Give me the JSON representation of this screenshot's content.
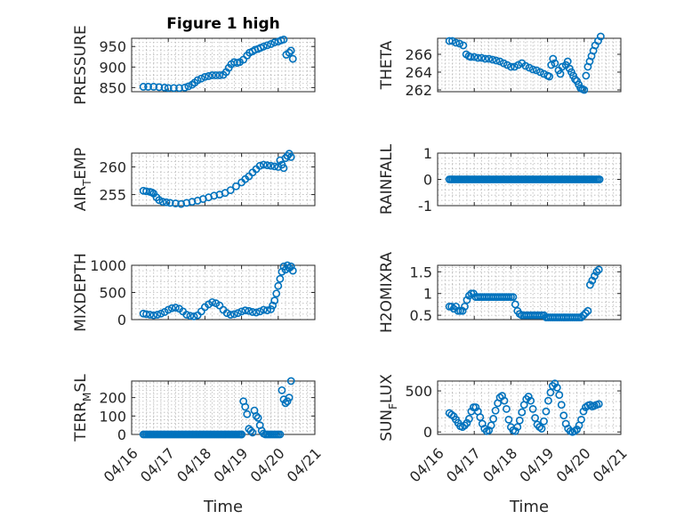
{
  "figure": {
    "title": "Figure 1 high",
    "xlabel": "Time",
    "x_ticks": [
      "04/16",
      "04/17",
      "04/18",
      "04/19",
      "04/20",
      "04/21"
    ],
    "marker_color": "#0072BD"
  },
  "chart_data": [
    {
      "type": "scatter",
      "name": "pressure",
      "title": "Figure 1 high",
      "ylabel_parts": [
        "PRESSURE"
      ],
      "xlabel": "",
      "ylim": [
        840,
        970
      ],
      "yticks": [
        850,
        900,
        950
      ],
      "xlim": [
        0,
        5
      ],
      "grid": true,
      "x": [
        0.32,
        0.45,
        0.6,
        0.75,
        0.9,
        1.0,
        1.15,
        1.3,
        1.45,
        1.55,
        1.65,
        1.72,
        1.8,
        1.9,
        2.0,
        2.1,
        2.2,
        2.3,
        2.4,
        2.5,
        2.58,
        2.65,
        2.72,
        2.8,
        2.88,
        2.95,
        3.05,
        3.15,
        3.22,
        3.3,
        3.37,
        3.45,
        3.52,
        3.6,
        3.7,
        3.8,
        3.9,
        4.0,
        4.08,
        4.15,
        4.22,
        4.3,
        4.35,
        4.4
      ],
      "y": [
        852,
        852,
        852,
        851,
        850,
        849,
        849,
        849,
        850,
        853,
        857,
        862,
        868,
        872,
        876,
        878,
        880,
        880,
        880,
        881,
        888,
        898,
        907,
        912,
        910,
        912,
        918,
        928,
        935,
        938,
        942,
        944,
        947,
        950,
        953,
        956,
        960,
        962,
        965,
        967,
        930,
        935,
        940,
        920
      ]
    },
    {
      "type": "scatter",
      "name": "theta",
      "ylabel_parts": [
        "THETA"
      ],
      "xlabel": "",
      "ylim": [
        261.8,
        267.8
      ],
      "yticks": [
        262,
        264,
        266
      ],
      "xlim": [
        0,
        5
      ],
      "grid": true,
      "x": [
        0.32,
        0.4,
        0.5,
        0.6,
        0.7,
        0.78,
        0.85,
        0.9,
        1.0,
        1.1,
        1.2,
        1.3,
        1.4,
        1.5,
        1.6,
        1.7,
        1.8,
        1.9,
        2.0,
        2.1,
        2.2,
        2.3,
        2.4,
        2.5,
        2.6,
        2.7,
        2.8,
        2.9,
        3.0,
        3.05,
        3.1,
        3.15,
        3.2,
        3.3,
        3.35,
        3.4,
        3.5,
        3.55,
        3.6,
        3.65,
        3.7,
        3.75,
        3.8,
        3.85,
        3.9,
        3.95,
        4.0,
        4.05,
        4.1,
        4.15,
        4.2,
        4.25,
        4.3,
        4.38,
        4.45
      ],
      "y": [
        267.5,
        267.5,
        267.3,
        267.2,
        267.0,
        266.0,
        265.8,
        265.7,
        265.7,
        265.6,
        265.6,
        265.5,
        265.5,
        265.4,
        265.3,
        265.2,
        265.0,
        264.8,
        264.6,
        264.6,
        264.8,
        265.0,
        264.7,
        264.5,
        264.3,
        264.2,
        264.0,
        263.8,
        263.6,
        263.5,
        264.8,
        265.5,
        265.0,
        264.2,
        263.8,
        264.6,
        264.8,
        265.2,
        264.4,
        264.0,
        263.6,
        263.2,
        263.0,
        262.6,
        262.2,
        262.1,
        262.0,
        263.6,
        264.6,
        265.2,
        265.8,
        266.4,
        267.0,
        267.5,
        268.0
      ]
    },
    {
      "type": "scatter",
      "name": "air_temp",
      "ylabel_parts": [
        "AIR",
        "T",
        "EMP"
      ],
      "xlabel": "",
      "ylim": [
        253,
        262.5
      ],
      "yticks": [
        255,
        260
      ],
      "xlim": [
        0,
        5
      ],
      "grid": true,
      "x": [
        0.32,
        0.4,
        0.5,
        0.55,
        0.6,
        0.68,
        0.75,
        0.85,
        0.95,
        1.05,
        1.2,
        1.35,
        1.5,
        1.65,
        1.8,
        1.95,
        2.1,
        2.25,
        2.4,
        2.55,
        2.7,
        2.85,
        3.0,
        3.1,
        3.2,
        3.3,
        3.4,
        3.5,
        3.6,
        3.7,
        3.8,
        3.9,
        4.0,
        4.05,
        4.1,
        4.15,
        4.2,
        4.25,
        4.3,
        4.35
      ],
      "y": [
        255.7,
        255.6,
        255.5,
        255.4,
        255.2,
        254.5,
        254.0,
        253.7,
        253.6,
        253.5,
        253.4,
        253.3,
        253.5,
        253.7,
        253.9,
        254.2,
        254.5,
        254.8,
        255.0,
        255.3,
        255.8,
        256.5,
        257.2,
        257.8,
        258.3,
        259.0,
        259.6,
        260.2,
        260.4,
        260.3,
        260.2,
        260.1,
        260.0,
        261.2,
        260.4,
        259.8,
        261.6,
        262.0,
        262.4,
        261.8
      ]
    },
    {
      "type": "scatter",
      "name": "rainfall",
      "ylabel_parts": [
        "RAINFALL"
      ],
      "xlabel": "",
      "ylim": [
        -1,
        1
      ],
      "yticks": [
        -1,
        0,
        1
      ],
      "xlim": [
        0,
        5
      ],
      "grid": true,
      "x_range": [
        0.32,
        4.42
      ],
      "n_points": 90,
      "constant_y": 0,
      "y_const": 0
    },
    {
      "type": "scatter",
      "name": "mixdepth",
      "ylabel_parts": [
        "MIXDEPTH"
      ],
      "xlabel": "",
      "ylim": [
        0,
        1000
      ],
      "yticks": [
        0,
        500,
        1000
      ],
      "xlim": [
        0,
        5
      ],
      "grid": true,
      "x": [
        0.32,
        0.4,
        0.5,
        0.6,
        0.7,
        0.8,
        0.9,
        1.0,
        1.1,
        1.2,
        1.3,
        1.4,
        1.5,
        1.6,
        1.7,
        1.8,
        1.9,
        2.0,
        2.1,
        2.2,
        2.3,
        2.4,
        2.5,
        2.6,
        2.7,
        2.8,
        2.9,
        3.0,
        3.1,
        3.2,
        3.3,
        3.4,
        3.5,
        3.6,
        3.7,
        3.8,
        3.85,
        3.9,
        3.95,
        4.0,
        4.05,
        4.1,
        4.15,
        4.2,
        4.25,
        4.3,
        4.35,
        4.4
      ],
      "y": [
        110,
        100,
        90,
        80,
        90,
        110,
        140,
        180,
        210,
        220,
        200,
        150,
        90,
        70,
        60,
        80,
        150,
        230,
        280,
        320,
        300,
        260,
        180,
        120,
        90,
        100,
        120,
        150,
        170,
        160,
        140,
        130,
        150,
        180,
        170,
        190,
        260,
        350,
        480,
        620,
        750,
        880,
        980,
        920,
        1000,
        950,
        980,
        900
      ]
    },
    {
      "type": "scatter",
      "name": "h2omixra",
      "ylabel_parts": [
        "H2OMIXRA"
      ],
      "xlabel": "",
      "ylim": [
        0.4,
        1.65
      ],
      "yticks": [
        0.5,
        1,
        1.5
      ],
      "xlim": [
        0,
        5
      ],
      "grid": true,
      "x": [
        0.32,
        0.38,
        0.44,
        0.5,
        0.56,
        0.62,
        0.68,
        0.74,
        0.8,
        0.86,
        0.92,
        0.98,
        1.04,
        1.1,
        1.16,
        1.22,
        1.28,
        1.34,
        1.4,
        1.46,
        1.52,
        1.58,
        1.64,
        1.7,
        1.76,
        1.82,
        1.88,
        1.94,
        2.0,
        2.06,
        2.12,
        2.18,
        2.24,
        2.3,
        2.36,
        2.42,
        2.48,
        2.54,
        2.6,
        2.66,
        2.72,
        2.78,
        2.84,
        2.9,
        2.96,
        3.02,
        3.08,
        3.14,
        3.2,
        3.26,
        3.32,
        3.38,
        3.44,
        3.5,
        3.56,
        3.62,
        3.68,
        3.74,
        3.8,
        3.86,
        3.92,
        3.98,
        4.04,
        4.1,
        4.16,
        4.22,
        4.28,
        4.34,
        4.4
      ],
      "y": [
        0.7,
        0.7,
        0.65,
        0.7,
        0.6,
        0.6,
        0.6,
        0.7,
        0.85,
        0.95,
        1.0,
        1.0,
        0.92,
        0.92,
        0.92,
        0.92,
        0.92,
        0.92,
        0.92,
        0.92,
        0.92,
        0.92,
        0.92,
        0.92,
        0.92,
        0.92,
        0.92,
        0.92,
        0.92,
        0.92,
        0.75,
        0.6,
        0.53,
        0.5,
        0.5,
        0.5,
        0.5,
        0.5,
        0.5,
        0.5,
        0.5,
        0.5,
        0.5,
        0.5,
        0.45,
        0.45,
        0.45,
        0.45,
        0.45,
        0.45,
        0.45,
        0.45,
        0.45,
        0.45,
        0.45,
        0.45,
        0.45,
        0.45,
        0.45,
        0.45,
        0.45,
        0.5,
        0.55,
        0.6,
        1.2,
        1.3,
        1.4,
        1.5,
        1.55
      ]
    },
    {
      "type": "scatter",
      "name": "terr_msl",
      "ylabel_parts": [
        "TERR",
        "M",
        "SL"
      ],
      "xlabel": "",
      "ylim": [
        0,
        290
      ],
      "yticks": [
        0,
        100,
        200
      ],
      "xlim": [
        0,
        5
      ],
      "grid": true,
      "x_range_zero": [
        0.32,
        3.0
      ],
      "n_zero": 60,
      "x": [
        3.0,
        3.05,
        3.1,
        3.15,
        3.2,
        3.25,
        3.3,
        3.35,
        3.4,
        3.45,
        3.5,
        3.55,
        3.6,
        3.65,
        3.7,
        3.75,
        3.8,
        3.85,
        3.9,
        3.95,
        4.0,
        4.05,
        4.1,
        4.15,
        4.2,
        4.25,
        4.3,
        4.35
      ],
      "y": [
        0,
        180,
        150,
        110,
        30,
        20,
        10,
        130,
        100,
        90,
        50,
        20,
        5,
        0,
        0,
        0,
        0,
        0,
        0,
        0,
        0,
        0,
        240,
        190,
        170,
        180,
        200,
        290
      ]
    },
    {
      "type": "scatter",
      "name": "sun_flux",
      "ylabel_parts": [
        "SUN",
        "F",
        "LUX"
      ],
      "xlabel": "",
      "ylim": [
        -30,
        620
      ],
      "yticks": [
        0,
        500
      ],
      "xlim": [
        0,
        5
      ],
      "grid": true,
      "x": [
        0.32,
        0.38,
        0.44,
        0.5,
        0.56,
        0.62,
        0.68,
        0.74,
        0.8,
        0.86,
        0.92,
        0.98,
        1.04,
        1.1,
        1.16,
        1.22,
        1.28,
        1.34,
        1.4,
        1.46,
        1.52,
        1.58,
        1.64,
        1.7,
        1.76,
        1.82,
        1.88,
        1.94,
        2.0,
        2.06,
        2.12,
        2.18,
        2.24,
        2.3,
        2.36,
        2.42,
        2.48,
        2.54,
        2.6,
        2.66,
        2.72,
        2.78,
        2.84,
        2.9,
        2.96,
        3.02,
        3.08,
        3.14,
        3.2,
        3.26,
        3.32,
        3.38,
        3.44,
        3.5,
        3.56,
        3.62,
        3.68,
        3.74,
        3.8,
        3.86,
        3.92,
        3.98,
        4.04,
        4.1,
        4.16,
        4.22,
        4.28,
        4.34,
        4.4
      ],
      "y": [
        230,
        210,
        190,
        150,
        110,
        70,
        60,
        80,
        110,
        160,
        250,
        300,
        300,
        250,
        180,
        100,
        40,
        10,
        20,
        80,
        160,
        260,
        350,
        420,
        440,
        380,
        280,
        150,
        60,
        20,
        10,
        60,
        140,
        240,
        330,
        400,
        430,
        380,
        280,
        170,
        90,
        60,
        40,
        130,
        250,
        380,
        480,
        560,
        590,
        540,
        450,
        330,
        200,
        100,
        40,
        10,
        0,
        10,
        30,
        80,
        150,
        250,
        300,
        320,
        330,
        310,
        320,
        330,
        340
      ]
    }
  ]
}
